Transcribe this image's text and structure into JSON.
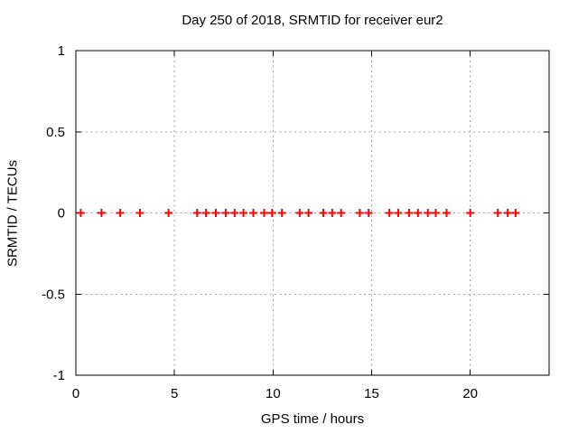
{
  "window": {
    "background": "#ffffff"
  },
  "chart_data": {
    "type": "scatter",
    "title": "Day 250 of 2018, SRMTID for receiver eur2",
    "xlabel": "GPS time / hours",
    "ylabel": "SRMTID / TECUs",
    "xlim": [
      0,
      24
    ],
    "ylim": [
      -1,
      1
    ],
    "xticks": [
      0,
      5,
      10,
      15,
      20
    ],
    "yticks": [
      -1,
      -0.5,
      0,
      0.5,
      1
    ],
    "grid": "dashed",
    "legend": "none",
    "grid_color": "#a0a0a0",
    "axis_color": "#000000",
    "marker": {
      "shape": "plus",
      "color": "#ff0000",
      "size": 9
    },
    "series": [
      {
        "name": "SRMTID",
        "x": [
          0.25,
          1.3,
          2.25,
          3.25,
          4.7,
          6.15,
          6.6,
          7.1,
          7.6,
          8.05,
          8.5,
          9.0,
          9.55,
          9.95,
          10.45,
          11.35,
          11.8,
          12.55,
          13.0,
          13.45,
          14.4,
          14.85,
          15.9,
          16.35,
          16.9,
          17.35,
          17.85,
          18.25,
          18.8,
          20.0,
          21.4,
          21.9,
          22.3
        ],
        "y": [
          0,
          0,
          0,
          0,
          0,
          0,
          0,
          0,
          0,
          0,
          0,
          0,
          0,
          0,
          0,
          0,
          0,
          0,
          0,
          0,
          0,
          0,
          0,
          0,
          0,
          0,
          0,
          0,
          0,
          0,
          0,
          0,
          0
        ]
      }
    ]
  }
}
